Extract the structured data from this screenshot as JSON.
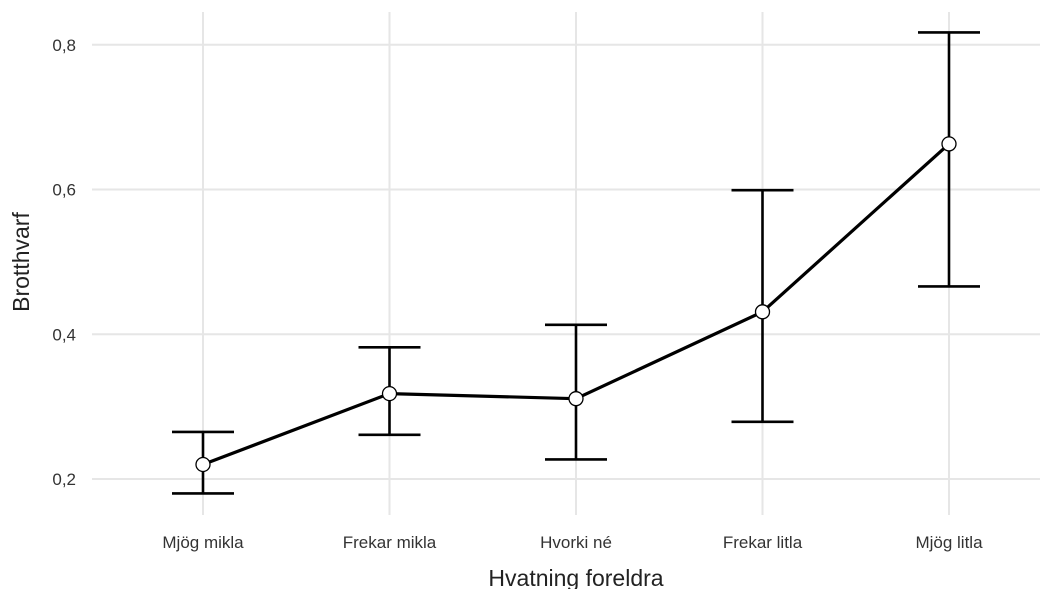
{
  "chart_data": {
    "type": "line",
    "xlabel": "Hvatning foreldra",
    "ylabel": "Brotthvarf",
    "categories": [
      "Mjög mikla",
      "Frekar mikla",
      "Hvorki né",
      "Frekar litla",
      "Mjög litla"
    ],
    "y_ticks": [
      0.2,
      0.4,
      0.6,
      0.8
    ],
    "y_tick_labels": [
      "0,2",
      "0,4",
      "0,6",
      "0,8"
    ],
    "ylim": [
      0.15,
      0.85
    ],
    "grid": true,
    "series": [
      {
        "values": [
          0.22,
          0.318,
          0.311,
          0.431,
          0.663
        ],
        "lower": [
          0.18,
          0.261,
          0.227,
          0.279,
          0.466
        ],
        "upper": [
          0.265,
          0.382,
          0.413,
          0.599,
          0.817
        ]
      }
    ],
    "colors": {
      "line": "#000000",
      "point_fill": "#ffffff",
      "grid": "#e6e6e6"
    }
  }
}
